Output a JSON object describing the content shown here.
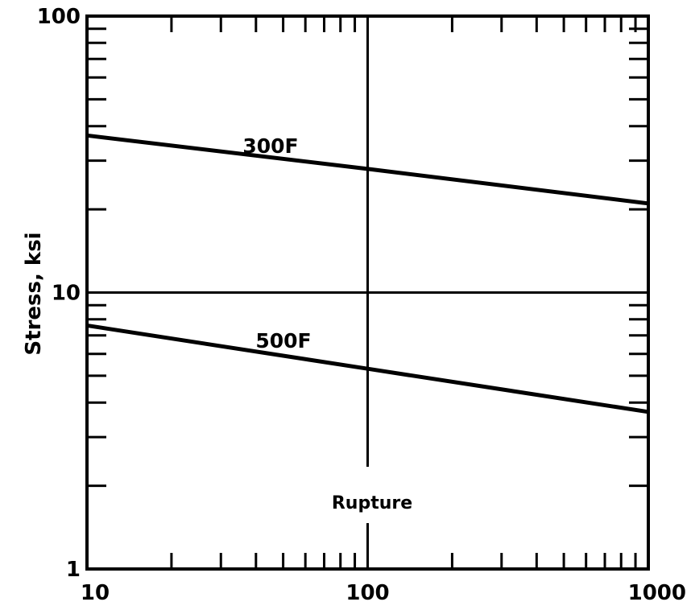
{
  "chart_data": {
    "type": "line",
    "title": "",
    "xlabel": "",
    "ylabel": "Stress, ksi",
    "xscale": "log",
    "yscale": "log",
    "xlim": [
      10,
      1000
    ],
    "ylim": [
      1,
      100
    ],
    "x_ticks": [
      "10",
      "100",
      "1000"
    ],
    "y_ticks": [
      "1",
      "10",
      "100"
    ],
    "grid": "major lines only (x=100, y=10)",
    "legend": "none",
    "annotation": "Rupture",
    "series": [
      {
        "name": "300F",
        "x": [
          10,
          100,
          1000
        ],
        "values": [
          37,
          28,
          21
        ]
      },
      {
        "name": "500F",
        "x": [
          10,
          100,
          1000
        ],
        "values": [
          7.6,
          5.3,
          3.7
        ]
      }
    ]
  },
  "colors": {
    "line": "#000000",
    "background": "#ffffff"
  }
}
